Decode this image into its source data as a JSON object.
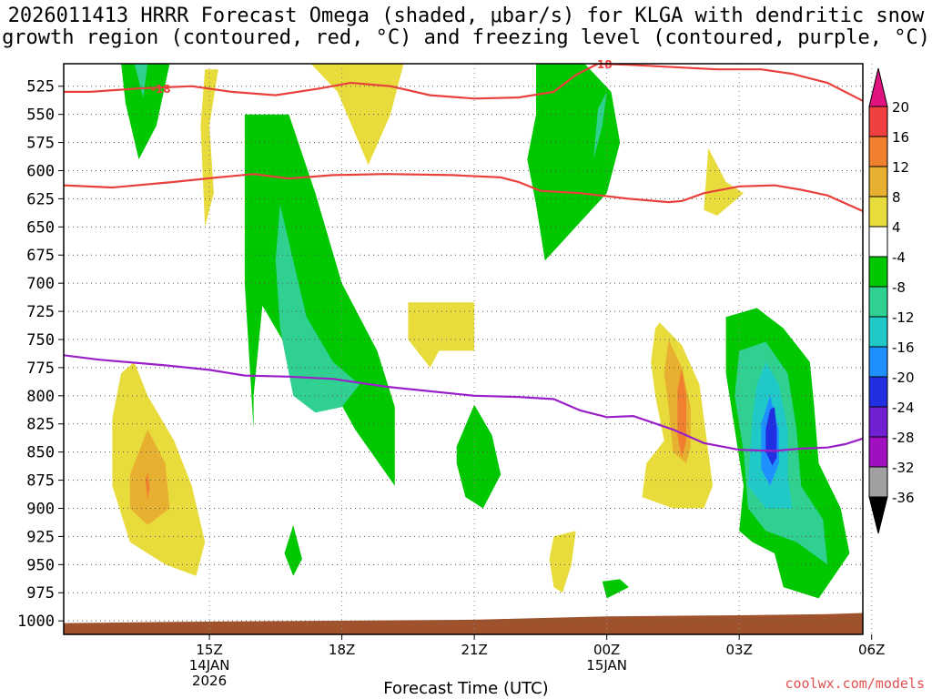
{
  "chart_data": {
    "type": "heatmap",
    "title_line1": "2026011413 HRRR Forecast Omega (shaded, μbar/s) for KLGA with dendritic snow",
    "title_line2": "growth region (contoured, red, °C) and freezing level (contoured, purple, °C)",
    "xlabel": "Forecast Time (UTC)",
    "credit": "coolwx.com/models",
    "x_hours_range": [
      -1.3,
      16.8
    ],
    "y_pressure_range": [
      505,
      1012
    ],
    "y_ticks": [
      525,
      550,
      575,
      600,
      625,
      650,
      675,
      700,
      725,
      750,
      775,
      800,
      825,
      850,
      875,
      900,
      925,
      950,
      975,
      1000
    ],
    "x_ticks": [
      {
        "hour": 2,
        "label": "15Z",
        "label2": "14JAN",
        "label3": "2026"
      },
      {
        "hour": 5,
        "label": "18Z",
        "label2": "",
        "label3": ""
      },
      {
        "hour": 8,
        "label": "21Z",
        "label2": "",
        "label3": ""
      },
      {
        "hour": 11,
        "label": "00Z",
        "label2": "15JAN",
        "label3": ""
      },
      {
        "hour": 14,
        "label": "03Z",
        "label2": "",
        "label3": ""
      },
      {
        "hour": 17,
        "label": "06Z",
        "label2": "",
        "label3": ""
      }
    ],
    "colorbar": {
      "labels": [
        "20",
        "16",
        "12",
        "8",
        "4",
        "-4",
        "-8",
        "-12",
        "-16",
        "-20",
        "-24",
        "-28",
        "-32",
        "-36"
      ],
      "colors": [
        "#e0137f",
        "#f04040",
        "#f08030",
        "#e8b030",
        "#e8dc3c",
        "#ffffff",
        "#00c800",
        "#30d090",
        "#20c8c8",
        "#1e90ff",
        "#2030e0",
        "#7020d0",
        "#a010c0",
        "#a0a0a0",
        "#000000"
      ]
    },
    "omega_regions": [
      {
        "value": -6,
        "pts": [
          [
            0.0,
            505
          ],
          [
            1.1,
            505
          ],
          [
            0.8,
            560
          ],
          [
            0.4,
            590
          ],
          [
            0.1,
            540
          ]
        ]
      },
      {
        "value": -10,
        "pts": [
          [
            0.3,
            505
          ],
          [
            0.6,
            505
          ],
          [
            0.5,
            535
          ],
          [
            0.4,
            520
          ]
        ]
      },
      {
        "value": 6,
        "pts": [
          [
            1.9,
            510
          ],
          [
            2.2,
            510
          ],
          [
            2.0,
            560
          ],
          [
            2.1,
            620
          ],
          [
            1.9,
            650
          ],
          [
            1.8,
            560
          ]
        ]
      },
      {
        "value": 6,
        "pts": [
          [
            4.3,
            505
          ],
          [
            6.4,
            505
          ],
          [
            6.1,
            550
          ],
          [
            5.6,
            595
          ],
          [
            4.9,
            530
          ]
        ]
      },
      {
        "value": -6,
        "pts": [
          [
            2.8,
            550
          ],
          [
            3.8,
            550
          ],
          [
            4.4,
            620
          ],
          [
            5.0,
            700
          ],
          [
            5.8,
            760
          ],
          [
            6.2,
            810
          ],
          [
            6.2,
            880
          ],
          [
            5.3,
            830
          ],
          [
            4.6,
            780
          ],
          [
            3.8,
            760
          ],
          [
            3.2,
            720
          ],
          [
            3.0,
            800
          ],
          [
            3.0,
            830
          ],
          [
            2.8,
            700
          ]
        ]
      },
      {
        "value": -10,
        "pts": [
          [
            3.6,
            630
          ],
          [
            3.9,
            680
          ],
          [
            4.2,
            730
          ],
          [
            4.8,
            770
          ],
          [
            5.4,
            790
          ],
          [
            5.0,
            810
          ],
          [
            4.4,
            815
          ],
          [
            3.9,
            800
          ],
          [
            3.6,
            740
          ],
          [
            3.5,
            680
          ]
        ]
      },
      {
        "value": 6,
        "pts": [
          [
            0.0,
            780
          ],
          [
            0.3,
            770
          ],
          [
            0.6,
            800
          ],
          [
            1.2,
            840
          ],
          [
            1.6,
            880
          ],
          [
            1.9,
            930
          ],
          [
            1.7,
            960
          ],
          [
            1.0,
            950
          ],
          [
            0.2,
            930
          ],
          [
            -0.2,
            880
          ],
          [
            -0.2,
            820
          ]
        ]
      },
      {
        "value": 10,
        "pts": [
          [
            0.2,
            870
          ],
          [
            0.6,
            830
          ],
          [
            1.0,
            860
          ],
          [
            1.1,
            900
          ],
          [
            0.6,
            915
          ],
          [
            0.2,
            900
          ]
        ]
      },
      {
        "value": 14,
        "pts": [
          [
            0.55,
            875
          ],
          [
            0.6,
            868
          ],
          [
            0.65,
            882
          ],
          [
            0.6,
            892
          ]
        ]
      },
      {
        "value": 6,
        "pts": [
          [
            6.5,
            717
          ],
          [
            8.0,
            717
          ],
          [
            8.0,
            760
          ],
          [
            7.2,
            760
          ],
          [
            7.0,
            775
          ],
          [
            6.5,
            750
          ]
        ]
      },
      {
        "value": -6,
        "pts": [
          [
            9.4,
            505
          ],
          [
            10.5,
            505
          ],
          [
            11.1,
            530
          ],
          [
            11.3,
            575
          ],
          [
            11.0,
            620
          ],
          [
            10.3,
            650
          ],
          [
            9.6,
            680
          ],
          [
            9.4,
            630
          ],
          [
            9.2,
            590
          ],
          [
            9.4,
            550
          ]
        ]
      },
      {
        "value": -10,
        "pts": [
          [
            11.0,
            530
          ],
          [
            10.9,
            560
          ],
          [
            10.7,
            590
          ],
          [
            10.8,
            545
          ]
        ]
      },
      {
        "value": 6,
        "pts": [
          [
            13.3,
            580
          ],
          [
            13.7,
            610
          ],
          [
            14.1,
            620
          ],
          [
            13.5,
            640
          ],
          [
            13.2,
            635
          ]
        ]
      },
      {
        "value": 6,
        "pts": [
          [
            12.2,
            735
          ],
          [
            12.7,
            755
          ],
          [
            13.1,
            790
          ],
          [
            13.3,
            850
          ],
          [
            13.4,
            880
          ],
          [
            13.2,
            900
          ],
          [
            12.5,
            900
          ],
          [
            11.8,
            890
          ],
          [
            11.9,
            860
          ],
          [
            12.3,
            840
          ],
          [
            12.1,
            800
          ],
          [
            12.0,
            770
          ],
          [
            12.1,
            740
          ]
        ]
      },
      {
        "value": 10,
        "pts": [
          [
            12.4,
            750
          ],
          [
            12.7,
            775
          ],
          [
            12.9,
            810
          ],
          [
            12.9,
            845
          ],
          [
            12.8,
            860
          ],
          [
            12.5,
            850
          ],
          [
            12.4,
            810
          ],
          [
            12.3,
            780
          ]
        ]
      },
      {
        "value": 14,
        "pts": [
          [
            12.7,
            775
          ],
          [
            12.8,
            800
          ],
          [
            12.8,
            840
          ],
          [
            12.7,
            855
          ],
          [
            12.6,
            835
          ],
          [
            12.6,
            795
          ]
        ]
      },
      {
        "value": -6,
        "pts": [
          [
            13.7,
            730
          ],
          [
            14.4,
            722
          ],
          [
            15.0,
            740
          ],
          [
            15.6,
            770
          ],
          [
            15.7,
            810
          ],
          [
            15.8,
            860
          ],
          [
            16.3,
            900
          ],
          [
            16.5,
            940
          ],
          [
            15.8,
            980
          ],
          [
            15.0,
            970
          ],
          [
            14.8,
            940
          ],
          [
            14.3,
            930
          ],
          [
            14.0,
            920
          ],
          [
            14.1,
            880
          ],
          [
            13.9,
            830
          ],
          [
            13.7,
            780
          ]
        ]
      },
      {
        "value": -10,
        "pts": [
          [
            14.0,
            760
          ],
          [
            14.6,
            752
          ],
          [
            15.1,
            780
          ],
          [
            15.3,
            830
          ],
          [
            15.4,
            880
          ],
          [
            15.9,
            910
          ],
          [
            16.0,
            950
          ],
          [
            15.3,
            930
          ],
          [
            14.6,
            920
          ],
          [
            14.2,
            900
          ],
          [
            14.1,
            850
          ],
          [
            13.9,
            800
          ]
        ]
      },
      {
        "value": -14,
        "pts": [
          [
            14.6,
            770
          ],
          [
            14.9,
            790
          ],
          [
            15.1,
            830
          ],
          [
            15.1,
            870
          ],
          [
            15.2,
            900
          ],
          [
            14.6,
            900
          ],
          [
            14.2,
            880
          ],
          [
            14.3,
            820
          ],
          [
            14.4,
            790
          ]
        ]
      },
      {
        "value": -18,
        "pts": [
          [
            14.7,
            800
          ],
          [
            14.9,
            830
          ],
          [
            14.9,
            860
          ],
          [
            14.7,
            880
          ],
          [
            14.5,
            865
          ],
          [
            14.5,
            825
          ]
        ]
      },
      {
        "value": -22,
        "pts": [
          [
            14.8,
            810
          ],
          [
            14.85,
            830
          ],
          [
            14.85,
            855
          ],
          [
            14.75,
            862
          ],
          [
            14.6,
            850
          ],
          [
            14.6,
            830
          ],
          [
            14.7,
            812
          ]
        ]
      },
      {
        "value": -6,
        "pts": [
          [
            7.6,
            845
          ],
          [
            8.0,
            808
          ],
          [
            8.4,
            835
          ],
          [
            8.6,
            870
          ],
          [
            8.2,
            900
          ],
          [
            7.8,
            890
          ],
          [
            7.6,
            860
          ]
        ]
      },
      {
        "value": -6,
        "pts": [
          [
            3.7,
            940
          ],
          [
            3.9,
            915
          ],
          [
            4.1,
            945
          ],
          [
            3.9,
            960
          ]
        ]
      },
      {
        "value": -6,
        "pts": [
          [
            10.9,
            965
          ],
          [
            11.3,
            963
          ],
          [
            11.5,
            970
          ],
          [
            11.0,
            980
          ]
        ]
      },
      {
        "value": 6,
        "pts": [
          [
            9.8,
            925
          ],
          [
            10.3,
            920
          ],
          [
            10.2,
            950
          ],
          [
            10.0,
            975
          ],
          [
            9.8,
            970
          ],
          [
            9.7,
            945
          ]
        ]
      }
    ],
    "dgz_upper": {
      "label": "-18",
      "x": [
        -1.3,
        -0.7,
        0.4,
        1.6,
        2.5,
        3.5,
        4.5,
        5.2,
        6.1,
        7.0,
        8.0,
        9.0,
        9.8,
        10.3,
        10.8,
        11.5,
        12.5,
        13.5,
        14.5,
        15.2,
        16.0,
        16.8
      ],
      "p": [
        530,
        530,
        527,
        525,
        530,
        533,
        527,
        522,
        525,
        533,
        536,
        535,
        530,
        515,
        505,
        506,
        508,
        510,
        510,
        514,
        522,
        538
      ]
    },
    "dgz_lower": {
      "x": [
        -1.3,
        -0.2,
        1.2,
        2.2,
        3.0,
        3.8,
        4.8,
        6.0,
        7.5,
        8.6,
        9.0,
        9.5,
        10.4,
        11.5,
        12.4,
        12.7,
        13.2,
        14.0,
        14.8,
        15.4,
        16.0,
        16.8
      ],
      "p": [
        613,
        615,
        610,
        606,
        603,
        607,
        604,
        603,
        604,
        606,
        610,
        618,
        620,
        625,
        628,
        627,
        620,
        614,
        613,
        617,
        622,
        636
      ]
    },
    "freezing": {
      "x": [
        -1.3,
        -0.5,
        1.0,
        2.0,
        2.8,
        3.8,
        4.8,
        6.0,
        7.0,
        8.0,
        9.0,
        9.8,
        10.4,
        11.0,
        11.6,
        12.5,
        13.2,
        14.0,
        14.8,
        15.4,
        16.0,
        16.4,
        16.8
      ],
      "p": [
        764,
        768,
        773,
        777,
        782,
        783,
        785,
        792,
        796,
        800,
        801,
        803,
        813,
        819,
        818,
        830,
        842,
        848,
        849,
        847,
        846,
        843,
        838
      ]
    },
    "terrain": {
      "x": [
        -1.3,
        1.0,
        4.0,
        8.0,
        11.0,
        14.0,
        16.0,
        16.8
      ],
      "p": [
        1002,
        1001,
        1000,
        999,
        996,
        995,
        994,
        993
      ]
    }
  }
}
